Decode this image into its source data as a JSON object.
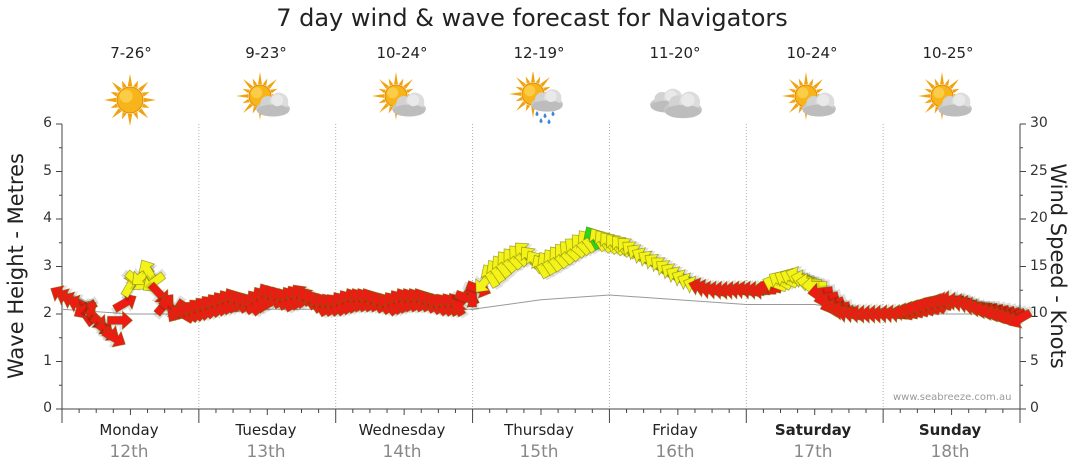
{
  "chart_data": {
    "type": "line",
    "title": "7 day wind & wave forecast for Navigators",
    "ylabel_left": "Wave Height - Metres",
    "ylabel_right": "Wind Speed - Knots",
    "ylim_left": [
      0,
      6
    ],
    "ylim_right": [
      0,
      30
    ],
    "yticks_left": [
      "0",
      "1",
      "2",
      "3",
      "4",
      "5",
      "6"
    ],
    "yticks_right": [
      "0",
      "5",
      "10",
      "15",
      "20",
      "25",
      "30"
    ],
    "grid": "vertical dotted at day boundaries and midday",
    "days": [
      {
        "name": "Monday",
        "date": "12th",
        "temp": "7-26°",
        "icon": "sun-icon",
        "bold": false
      },
      {
        "name": "Tuesday",
        "date": "13th",
        "temp": "9-23°",
        "icon": "sun-cloud-icon",
        "bold": false
      },
      {
        "name": "Wednesday",
        "date": "14th",
        "temp": "10-24°",
        "icon": "sun-cloud-icon",
        "bold": false
      },
      {
        "name": "Thursday",
        "date": "15th",
        "temp": "12-19°",
        "icon": "sun-cloud-rain-icon",
        "bold": false
      },
      {
        "name": "Friday",
        "date": "16th",
        "temp": "11-20°",
        "icon": "cloud-icon",
        "bold": false
      },
      {
        "name": "Saturday",
        "date": "17th",
        "temp": "10-24°",
        "icon": "sun-cloud-icon",
        "bold": true
      },
      {
        "name": "Sunday",
        "date": "18th",
        "temp": "10-25°",
        "icon": "sun-cloud-icon",
        "bold": true
      }
    ],
    "series": [
      {
        "name": "Wind",
        "unit": "knots",
        "t_days": [
          0.0,
          0.13,
          0.25,
          0.38,
          0.5,
          0.63,
          0.75,
          0.88,
          1.0,
          1.13,
          1.25,
          1.38,
          1.5,
          1.63,
          1.75,
          1.88,
          2.0,
          2.13,
          2.25,
          2.38,
          2.5,
          2.63,
          2.75,
          2.88,
          3.0,
          3.13,
          3.25,
          3.38,
          3.5,
          3.63,
          3.75,
          3.88,
          4.0,
          4.13,
          4.25,
          4.38,
          4.5,
          4.63,
          4.75,
          4.88,
          5.0,
          5.13,
          5.25,
          5.38,
          5.5,
          5.63,
          5.75,
          5.88,
          6.0,
          6.13,
          6.25,
          6.38,
          6.5,
          6.63,
          6.75,
          6.88,
          7.0
        ],
        "speed": [
          12,
          11,
          9.5,
          7.5,
          13,
          14.5,
          11,
          10,
          10.5,
          11,
          11.5,
          11,
          12,
          11.5,
          12,
          11,
          11,
          11.5,
          11.5,
          11,
          11.5,
          11.5,
          11,
          11,
          12,
          14,
          15.5,
          16.5,
          15,
          16,
          17,
          18,
          17.5,
          17,
          16,
          15,
          14,
          13,
          12.5,
          12.5,
          12.5,
          12.5,
          13.5,
          14,
          13,
          11,
          10,
          10,
          10,
          10,
          10.5,
          11,
          11.5,
          11,
          10.5,
          10,
          9.5
        ],
        "direction_to_deg": [
          300,
          290,
          135,
          120,
          30,
          330,
          40,
          300,
          315,
          320,
          330,
          320,
          330,
          330,
          320,
          330,
          320,
          330,
          330,
          320,
          330,
          330,
          320,
          330,
          0,
          330,
          320,
          315,
          330,
          320,
          310,
          330,
          320,
          315,
          300,
          310,
          300,
          290,
          280,
          270,
          280,
          270,
          300,
          290,
          270,
          250,
          280,
          270,
          270,
          280,
          290,
          300,
          270,
          280,
          260,
          250,
          240
        ]
      },
      {
        "name": "Wave",
        "unit": "m",
        "t_days": [
          0.0,
          0.5,
          1.0,
          1.5,
          2.0,
          2.5,
          3.0,
          3.5,
          4.0,
          4.5,
          5.0,
          5.5,
          6.0,
          6.5,
          7.0
        ],
        "values": [
          2.1,
          2.0,
          2.0,
          2.1,
          2.1,
          2.1,
          2.1,
          2.3,
          2.4,
          2.3,
          2.2,
          2.2,
          2.0,
          2.0,
          2.0
        ]
      }
    ]
  },
  "credit": "www.seabreeze.com.au"
}
